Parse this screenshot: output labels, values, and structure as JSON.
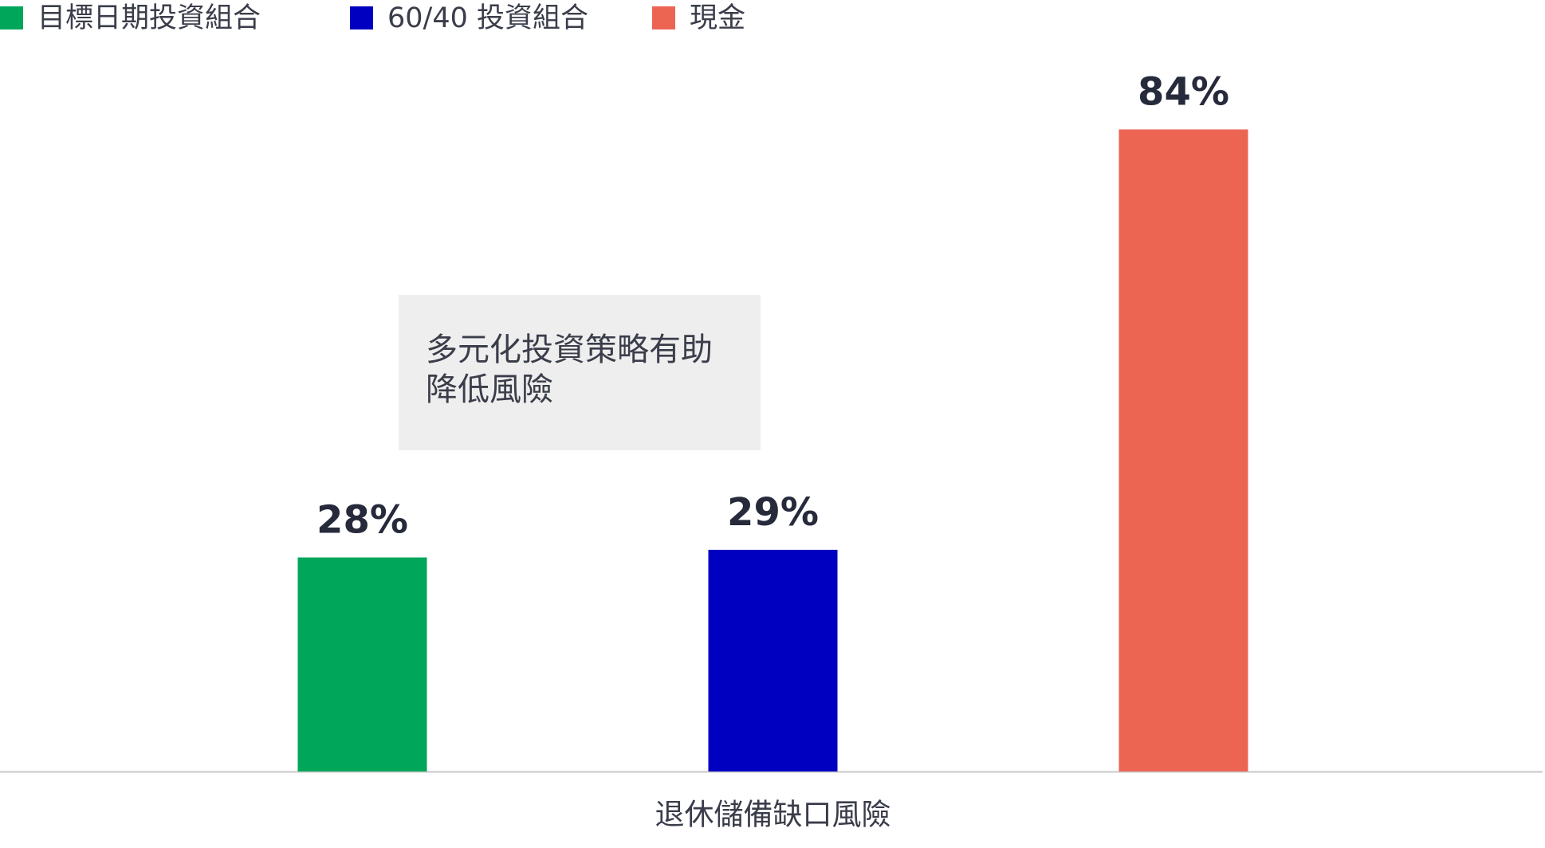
{
  "chart_data": {
    "type": "bar",
    "categories": [
      "退休儲備缺口風險"
    ],
    "series": [
      {
        "name": "目標日期投資組合",
        "color": "#00a65a",
        "values": [
          28
        ],
        "value_labels": [
          "28%"
        ]
      },
      {
        "name": "60/40 投資組合",
        "color": "#0000c0",
        "values": [
          29
        ],
        "value_labels": [
          "29%"
        ]
      },
      {
        "name": "現金",
        "color": "#ec6553",
        "values": [
          84
        ],
        "value_labels": [
          "84%"
        ]
      }
    ],
    "ylim": [
      0,
      100
    ],
    "annotation": "多元化投資策略有助降低風險"
  }
}
